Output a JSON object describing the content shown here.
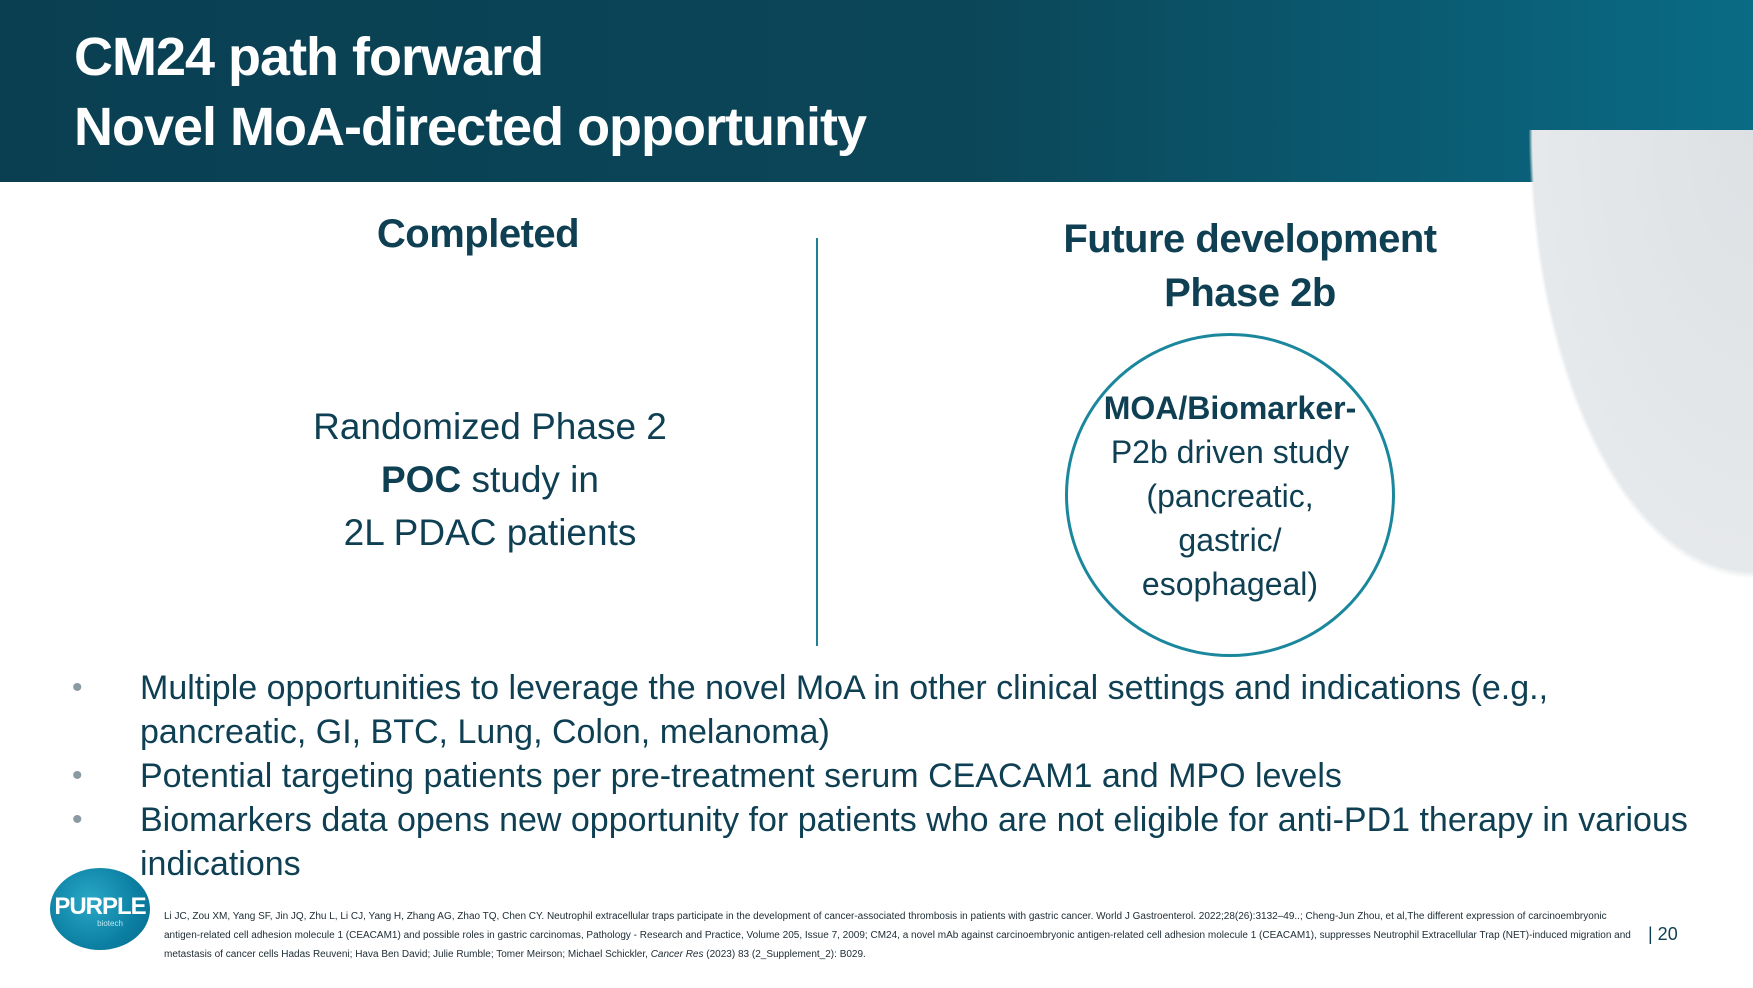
{
  "title": {
    "line1": "CM24 path forward",
    "line2": "Novel MoA-directed opportunity"
  },
  "completed": {
    "heading": "Completed",
    "line1": "Randomized Phase 2",
    "line2_bold": "POC",
    "line2_rest": " study in",
    "line3": "2L PDAC patients"
  },
  "future": {
    "heading1": "Future development",
    "heading2": "Phase 2b",
    "circle_bold": "MOA/Biomarker-",
    "circle_line2": "P2b driven study",
    "circle_line3": "(pancreatic,",
    "circle_line4": "gastric/",
    "circle_line5": "esophageal)"
  },
  "bullets": [
    "Multiple opportunities to leverage the novel MoA in other clinical settings and indications (e.g., pancreatic, GI, BTC, Lung, Colon, melanoma)",
    "Potential targeting patients per pre-treatment serum CEACAM1 and MPO levels",
    "Biomarkers data opens new opportunity for patients who are not eligible for anti-PD1 therapy in various indications"
  ],
  "footer": {
    "logo_text": "PURPLE",
    "logo_sub": "biotech",
    "references_pre": "Li JC, Zou XM, Yang SF, Jin JQ, Zhu L, Li CJ, Yang H, Zhang AG, Zhao TQ, Chen CY. Neutrophil extracellular traps participate in the development of cancer-associated thrombosis in patients with gastric cancer. World J Gastroenterol. 2022;28(26):3132–49..; Cheng-Jun Zhou, et al,The different expression of carcinoembryonic antigen-related cell adhesion molecule 1 (CEACAM1) and possible roles in gastric carcinomas, Pathology - Research and Practice, Volume 205, Issue 7, 2009; CM24, a novel mAb against carcinoembryonic antigen-related cell adhesion molecule 1 (CEACAM1), suppresses Neutrophil Extracellular Trap (NET)-induced migration and metastasis of cancer cells Hadas Reuveni; Hava Ben David; Julie Rumble; Tomer Meirson; Michael Schickler,",
    "references_italic": "Cancer Res",
    "references_post": " (2023) 83 (2_Supplement_2): B029.",
    "page_number": "| 20"
  },
  "colors": {
    "header_bg": "#0a3f52",
    "text_dark": "#0e3f52",
    "accent_teal": "#1a879d"
  }
}
